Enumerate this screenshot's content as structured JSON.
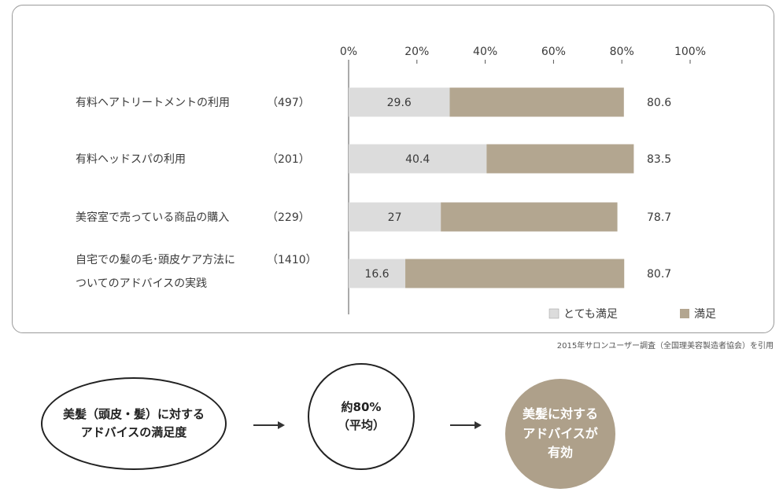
{
  "chart_data": {
    "type": "bar",
    "stacked": true,
    "orientation": "horizontal",
    "xlim": [
      0,
      100
    ],
    "x_ticks": [
      "0%",
      "20%",
      "40%",
      "60%",
      "80%",
      "100%"
    ],
    "categories": [
      {
        "label_lines": [
          "有料ヘアトリートメントの利用"
        ],
        "n": "（497）"
      },
      {
        "label_lines": [
          "有料ヘッドスパの利用"
        ],
        "n": "（201）"
      },
      {
        "label_lines": [
          "美容室で売っている商品の購入"
        ],
        "n": "（229）"
      },
      {
        "label_lines": [
          "自宅での髪の毛･頭皮ケア方法に",
          "ついてのアドバイスの実践"
        ],
        "n": "（1410）"
      }
    ],
    "series": [
      {
        "name": "とても満足",
        "color": "#dcdcdc",
        "values": [
          29.6,
          40.4,
          27,
          16.6
        ]
      },
      {
        "name": "満足",
        "color": "#b3a690",
        "totals": [
          80.6,
          83.5,
          78.7,
          80.7
        ]
      }
    ],
    "value_labels_inner": [
      "29.6",
      "40.4",
      "27",
      "16.6"
    ],
    "value_labels_total": [
      "80.6",
      "83.5",
      "78.7",
      "80.7"
    ],
    "legend": {
      "placement": "bottom-right",
      "items": [
        {
          "label": "とても満足",
          "color": "#dcdcdc"
        },
        {
          "label": "満足",
          "color": "#b3a690"
        }
      ]
    }
  },
  "citation": "2015年サロンユーザー調査（全国理美容製造者協会）を引用",
  "flow": {
    "step1": {
      "line1": "美髪（頭皮・髪）に対する",
      "line2": "アドバイスの満足度"
    },
    "step2": {
      "line1": "約80%",
      "line2": "（平均）"
    },
    "step3": {
      "line1": "美髪に対する",
      "line2": "アドバイスが",
      "line3": "有効"
    }
  }
}
